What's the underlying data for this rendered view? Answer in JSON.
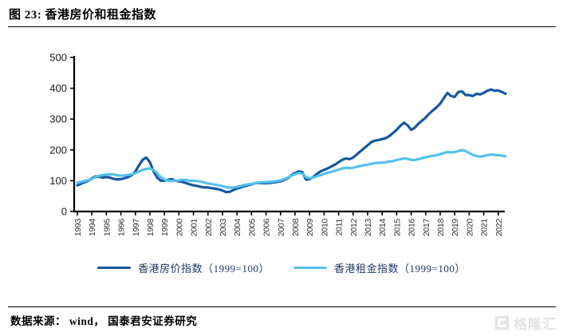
{
  "header": {
    "title": "图 23:  香港房价和租金指数"
  },
  "footer": {
    "source_text": "数据来源： wind， 国泰君安证券研究",
    "watermark": "格隆汇"
  },
  "colors": {
    "house_line": "#1557A0",
    "rent_line": "#56C0EC",
    "legend_text": "#1F3864",
    "axis": "#000000",
    "y_tick_label": "#1a1a1a",
    "x_tick_label": "#333333",
    "watermark": "#e2e2e2"
  },
  "chart_data": {
    "type": "line",
    "title": "香港房价和租金指数",
    "xlabel": "",
    "ylabel": "",
    "ylim": [
      0,
      500
    ],
    "y_tick_step": 100,
    "y_tick_labels": [
      "0",
      "100",
      "200",
      "300",
      "400",
      "500"
    ],
    "x_start": 1993,
    "x_step": 0.25,
    "x_tick_labels": [
      "1993",
      "1994",
      "1995",
      "1996",
      "1997",
      "1998",
      "1999",
      "2000",
      "2001",
      "2002",
      "2003",
      "2004",
      "2005",
      "2006",
      "2007",
      "2008",
      "2009",
      "2010",
      "2011",
      "2012",
      "2013",
      "2014",
      "2015",
      "2016",
      "2017",
      "2018",
      "2019",
      "2020",
      "2021",
      "2022"
    ],
    "grid": false,
    "legend_position": "bottom",
    "series": [
      {
        "name": "香港房价指数（1999=100）",
        "color": "#1557A0",
        "values": [
          85,
          90,
          95,
          100,
          108,
          114,
          113,
          110,
          112,
          110,
          106,
          104,
          105,
          108,
          112,
          118,
          130,
          150,
          168,
          175,
          160,
          130,
          110,
          100,
          100,
          103,
          105,
          100,
          98,
          96,
          92,
          88,
          85,
          83,
          80,
          78,
          78,
          76,
          74,
          72,
          68,
          63,
          64,
          70,
          75,
          78,
          82,
          85,
          88,
          92,
          93,
          92,
          92,
          93,
          94,
          96,
          98,
          102,
          108,
          118,
          125,
          130,
          128,
          104,
          105,
          112,
          122,
          130,
          135,
          140,
          146,
          152,
          160,
          168,
          172,
          170,
          175,
          185,
          195,
          205,
          215,
          225,
          230,
          232,
          235,
          238,
          245,
          255,
          265,
          278,
          288,
          280,
          265,
          272,
          285,
          295,
          305,
          318,
          328,
          338,
          350,
          368,
          385,
          375,
          372,
          388,
          390,
          378,
          378,
          375,
          382,
          380,
          385,
          392,
          396,
          392,
          393,
          388,
          382
        ]
      },
      {
        "name": "香港租金指数（1999=100）",
        "color": "#56C0EC",
        "values": [
          93,
          96,
          99,
          102,
          106,
          112,
          116,
          118,
          120,
          121,
          120,
          118,
          116,
          117,
          119,
          121,
          124,
          130,
          135,
          138,
          140,
          135,
          124,
          112,
          104,
          100,
          99,
          100,
          101,
          103,
          102,
          100,
          100,
          99,
          97,
          94,
          91,
          89,
          87,
          85,
          82,
          79,
          77,
          78,
          80,
          83,
          86,
          88,
          90,
          92,
          94,
          95,
          95,
          96,
          97,
          99,
          101,
          105,
          110,
          116,
          121,
          125,
          123,
          112,
          108,
          110,
          114,
          118,
          122,
          126,
          129,
          132,
          136,
          140,
          142,
          141,
          142,
          145,
          148,
          150,
          152,
          155,
          157,
          158,
          158,
          160,
          162,
          164,
          167,
          170,
          172,
          171,
          168,
          167,
          170,
          173,
          176,
          179,
          181,
          183,
          186,
          190,
          193,
          192,
          193,
          196,
          199,
          196,
          190,
          184,
          180,
          178,
          180,
          183,
          185,
          184,
          183,
          181,
          179
        ]
      }
    ]
  }
}
